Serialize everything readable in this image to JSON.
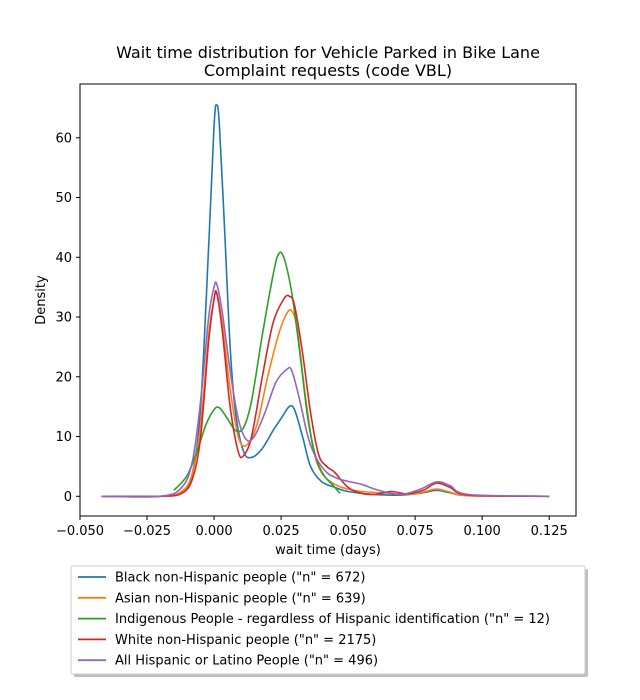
{
  "chart_data": {
    "type": "line",
    "title": [
      "Wait time distribution  for Vehicle Parked in Bike Lane",
      "Complaint requests (code VBL)"
    ],
    "xlabel": "wait time (days)",
    "ylabel": "Density",
    "xlim": [
      -0.05,
      0.135
    ],
    "ylim": [
      -3.3,
      69
    ],
    "xticks": [
      -0.05,
      -0.025,
      0.0,
      0.025,
      0.05,
      0.075,
      0.1,
      0.125
    ],
    "xtick_labels": [
      "−0.050",
      "−0.025",
      "0.000",
      "0.025",
      "0.050",
      "0.075",
      "0.100",
      "0.125"
    ],
    "yticks": [
      0,
      10,
      20,
      30,
      40,
      50,
      60
    ],
    "ytick_labels": [
      "0",
      "10",
      "20",
      "30",
      "40",
      "50",
      "60"
    ],
    "grid": false,
    "legend_position": "below",
    "series": [
      {
        "name": "Black non-Hispanic people (\"n\" = 672)",
        "color": "#1f77b4",
        "points": [
          [
            -0.042,
            0
          ],
          [
            -0.02,
            0
          ],
          [
            -0.012,
            0.8
          ],
          [
            -0.008,
            4
          ],
          [
            -0.005,
            15
          ],
          [
            -0.002,
            42
          ],
          [
            0.0,
            62
          ],
          [
            0.001,
            65.5
          ],
          [
            0.002,
            62
          ],
          [
            0.004,
            44
          ],
          [
            0.006,
            25
          ],
          [
            0.008,
            14
          ],
          [
            0.011,
            7.5
          ],
          [
            0.014,
            6.5
          ],
          [
            0.018,
            8
          ],
          [
            0.022,
            11
          ],
          [
            0.025,
            13
          ],
          [
            0.028,
            15
          ],
          [
            0.03,
            14.5
          ],
          [
            0.033,
            10
          ],
          [
            0.036,
            5
          ],
          [
            0.04,
            2.5
          ],
          [
            0.045,
            1.5
          ],
          [
            0.05,
            0.8
          ],
          [
            0.06,
            0.3
          ],
          [
            0.07,
            0.2
          ],
          [
            0.078,
            0.6
          ],
          [
            0.083,
            1.0
          ],
          [
            0.088,
            0.6
          ],
          [
            0.095,
            0.1
          ],
          [
            0.125,
            0
          ]
        ]
      },
      {
        "name": "Asian non-Hispanic people (\"n\" = 639)",
        "color": "#ff7f0e",
        "points": [
          [
            -0.042,
            0
          ],
          [
            -0.02,
            0
          ],
          [
            -0.012,
            0.8
          ],
          [
            -0.008,
            4
          ],
          [
            -0.005,
            12
          ],
          [
            -0.002,
            27
          ],
          [
            0.0,
            33
          ],
          [
            0.001,
            34
          ],
          [
            0.003,
            29
          ],
          [
            0.006,
            18
          ],
          [
            0.009,
            10
          ],
          [
            0.012,
            8.5
          ],
          [
            0.016,
            12
          ],
          [
            0.02,
            20
          ],
          [
            0.024,
            27
          ],
          [
            0.027,
            30.5
          ],
          [
            0.029,
            31
          ],
          [
            0.031,
            28
          ],
          [
            0.034,
            17
          ],
          [
            0.037,
            8
          ],
          [
            0.04,
            4
          ],
          [
            0.045,
            2
          ],
          [
            0.05,
            1.2
          ],
          [
            0.055,
            0.8
          ],
          [
            0.065,
            0.5
          ],
          [
            0.072,
            0.3
          ],
          [
            0.078,
            0.7
          ],
          [
            0.083,
            1.2
          ],
          [
            0.088,
            0.7
          ],
          [
            0.095,
            0.1
          ],
          [
            0.125,
            0
          ]
        ]
      },
      {
        "name": "Indigenous People - regardless of Hispanic identification (\"n\" = 12)",
        "color": "#2ca02c",
        "points": [
          [
            -0.015,
            1
          ],
          [
            -0.01,
            3.5
          ],
          [
            -0.006,
            8
          ],
          [
            -0.003,
            12
          ],
          [
            0.0,
            14.5
          ],
          [
            0.002,
            14.8
          ],
          [
            0.005,
            13
          ],
          [
            0.008,
            11
          ],
          [
            0.011,
            11.5
          ],
          [
            0.014,
            16
          ],
          [
            0.018,
            27
          ],
          [
            0.022,
            37
          ],
          [
            0.024,
            40.5
          ],
          [
            0.026,
            40
          ],
          [
            0.029,
            34
          ],
          [
            0.032,
            24
          ],
          [
            0.035,
            13
          ],
          [
            0.038,
            6.5
          ],
          [
            0.041,
            3.5
          ],
          [
            0.044,
            2
          ],
          [
            0.047,
            0.5
          ]
        ]
      },
      {
        "name": "White non-Hispanic people (\"n\" = 2175)",
        "color": "#d62728",
        "points": [
          [
            -0.042,
            0
          ],
          [
            -0.02,
            0
          ],
          [
            -0.012,
            0.5
          ],
          [
            -0.008,
            3
          ],
          [
            -0.005,
            10
          ],
          [
            -0.002,
            26
          ],
          [
            0.0,
            33
          ],
          [
            0.001,
            34
          ],
          [
            0.003,
            28
          ],
          [
            0.006,
            15
          ],
          [
            0.009,
            7.5
          ],
          [
            0.011,
            6.8
          ],
          [
            0.014,
            10
          ],
          [
            0.018,
            20
          ],
          [
            0.022,
            29
          ],
          [
            0.026,
            33
          ],
          [
            0.028,
            33.5
          ],
          [
            0.03,
            32
          ],
          [
            0.033,
            24
          ],
          [
            0.036,
            14
          ],
          [
            0.039,
            7
          ],
          [
            0.042,
            5
          ],
          [
            0.045,
            4
          ],
          [
            0.05,
            1.5
          ],
          [
            0.055,
            0.5
          ],
          [
            0.06,
            0.3
          ],
          [
            0.066,
            0.8
          ],
          [
            0.072,
            0.4
          ],
          [
            0.078,
            1
          ],
          [
            0.083,
            2.2
          ],
          [
            0.088,
            1.5
          ],
          [
            0.095,
            0.2
          ],
          [
            0.125,
            0
          ]
        ]
      },
      {
        "name": "All Hispanic or Latino People (\"n\" = 496)",
        "color": "#9467bd",
        "points": [
          [
            -0.042,
            0
          ],
          [
            -0.02,
            0
          ],
          [
            -0.012,
            1.5
          ],
          [
            -0.008,
            6
          ],
          [
            -0.005,
            16
          ],
          [
            -0.002,
            30
          ],
          [
            0.0,
            35
          ],
          [
            0.001,
            35.5
          ],
          [
            0.003,
            31
          ],
          [
            0.006,
            21
          ],
          [
            0.009,
            13
          ],
          [
            0.012,
            9.5
          ],
          [
            0.015,
            10
          ],
          [
            0.019,
            14
          ],
          [
            0.023,
            19
          ],
          [
            0.027,
            21.2
          ],
          [
            0.029,
            21
          ],
          [
            0.032,
            16
          ],
          [
            0.035,
            10
          ],
          [
            0.038,
            6.5
          ],
          [
            0.042,
            4
          ],
          [
            0.046,
            3
          ],
          [
            0.05,
            2.5
          ],
          [
            0.055,
            2
          ],
          [
            0.06,
            1.2
          ],
          [
            0.065,
            0.6
          ],
          [
            0.07,
            0.3
          ],
          [
            0.077,
            1.2
          ],
          [
            0.083,
            2.4
          ],
          [
            0.088,
            1.8
          ],
          [
            0.095,
            0.3
          ],
          [
            0.125,
            0
          ]
        ]
      }
    ]
  }
}
